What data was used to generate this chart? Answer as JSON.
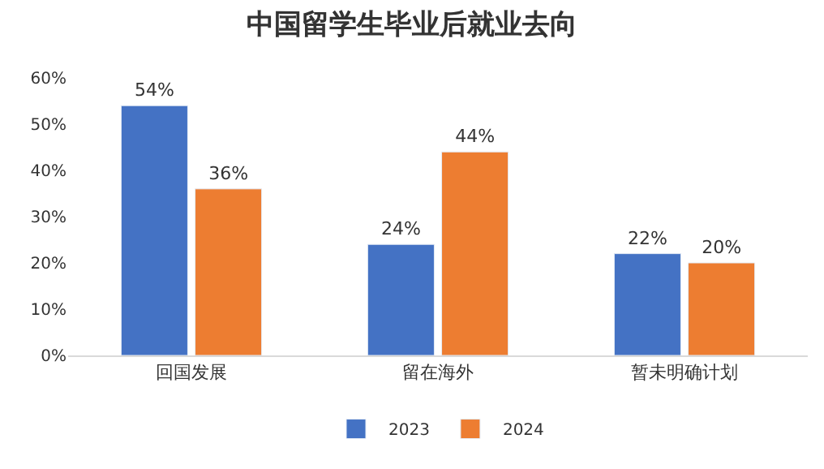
{
  "chart_data": {
    "type": "bar",
    "title": "中国留学生毕业后就业去向",
    "categories": [
      "回国发展",
      "留在海外",
      "暂未明确计划"
    ],
    "series": [
      {
        "name": "2023",
        "color": "#4472c4",
        "values": [
          54,
          24,
          22
        ],
        "value_labels": [
          "54%",
          "24%",
          "22%"
        ]
      },
      {
        "name": "2024",
        "color": "#ed7d31",
        "values": [
          36,
          44,
          20
        ],
        "value_labels": [
          "36%",
          "44%",
          "20%"
        ]
      }
    ],
    "ylim": [
      0,
      60
    ],
    "yticks": [
      {
        "value": 0,
        "label": "0%"
      },
      {
        "value": 10,
        "label": "10%"
      },
      {
        "value": 20,
        "label": "20%"
      },
      {
        "value": 30,
        "label": "30%"
      },
      {
        "value": 40,
        "label": "40%"
      },
      {
        "value": 50,
        "label": "50%"
      },
      {
        "value": 60,
        "label": "60%"
      }
    ],
    "grid": false,
    "legend": "bottom"
  }
}
